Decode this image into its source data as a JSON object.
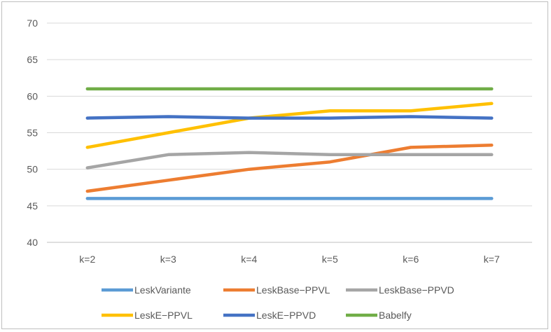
{
  "chart_data": {
    "type": "line",
    "categories": [
      "k=2",
      "k=3",
      "k=4",
      "k=5",
      "k=6",
      "k=7"
    ],
    "ylim": [
      40,
      70
    ],
    "yticks": [
      40,
      45,
      50,
      55,
      60,
      65,
      70
    ],
    "grid": true,
    "legend_position": "bottom",
    "series": [
      {
        "name": "LeskVariante",
        "color": "#5b9bd5",
        "values": [
          46,
          46,
          46,
          46,
          46,
          46
        ]
      },
      {
        "name": "LeskBase−PPVL",
        "color": "#ed7d31",
        "values": [
          47,
          48.5,
          50,
          51,
          53,
          53.3
        ]
      },
      {
        "name": "LeskBase−PPVD",
        "color": "#a5a5a5",
        "values": [
          50.2,
          52,
          52.3,
          52,
          52,
          52
        ]
      },
      {
        "name": "LeskE−PPVL",
        "color": "#ffc000",
        "values": [
          53,
          55,
          57,
          58,
          58,
          59
        ]
      },
      {
        "name": "LeskE−PPVD",
        "color": "#4472c4",
        "values": [
          57,
          57.2,
          57,
          57,
          57.2,
          57
        ]
      },
      {
        "name": "Babelfy",
        "color": "#70ad47",
        "values": [
          61,
          61,
          61,
          61,
          61,
          61
        ]
      }
    ]
  }
}
